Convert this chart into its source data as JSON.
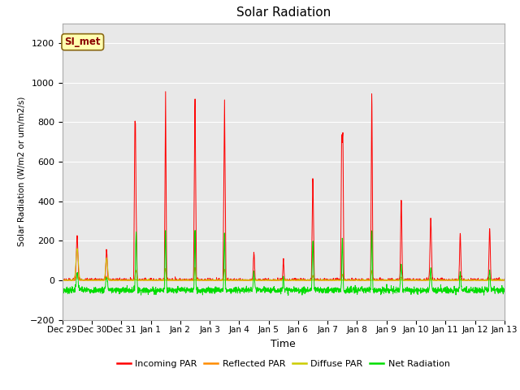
{
  "title": "Solar Radiation",
  "ylabel": "Solar Radiation (W/m2 or um/m2/s)",
  "xlabel": "Time",
  "ylim": [
    -200,
    1300
  ],
  "yticks": [
    -200,
    0,
    200,
    400,
    600,
    800,
    1000,
    1200
  ],
  "x_labels": [
    "Dec 29",
    "Dec 30",
    "Dec 31",
    "Jan 1",
    "Jan 2",
    "Jan 3",
    "Jan 4",
    "Jan 5",
    "Jan 6",
    "Jan 7",
    "Jan 8",
    "Jan 9",
    "Jan 10",
    "Jan 11",
    "Jan 12",
    "Jan 13"
  ],
  "annotation_text": "SI_met",
  "annotation_color": "#8B0000",
  "annotation_bg": "#FFFFB0",
  "bg_color": "#E8E8E8",
  "colors": {
    "incoming": "#FF0000",
    "reflected": "#FF8C00",
    "diffuse": "#CCCC00",
    "net": "#00DD00"
  },
  "legend_labels": [
    "Incoming PAR",
    "Reflected PAR",
    "Diffuse PAR",
    "Net Radiation"
  ],
  "n_days": 15,
  "pts_per_day": 144
}
